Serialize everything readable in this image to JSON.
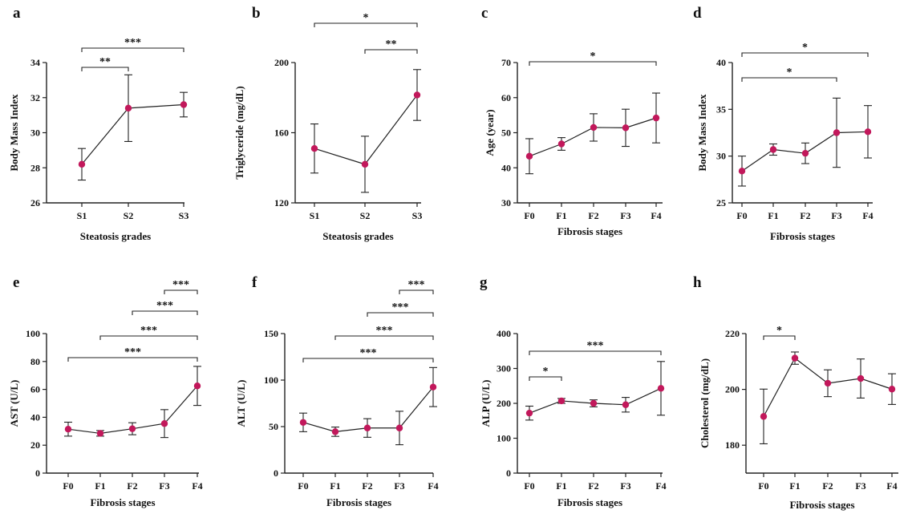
{
  "style": {
    "point_color": "#c2185b",
    "line_color": "#222222"
  },
  "chart_data": [
    {
      "panel": "a",
      "type": "line",
      "categories": [
        "S1",
        "S2",
        "S3"
      ],
      "values": [
        28.2,
        31.4,
        31.6
      ],
      "err_low": [
        27.3,
        29.5,
        30.9
      ],
      "err_high": [
        29.1,
        33.3,
        32.3
      ],
      "ylim": [
        26,
        34
      ],
      "yticks": [
        26,
        28,
        30,
        32,
        34
      ],
      "xlabel": "Steatosis grades",
      "ylabel": "Body Mass Index",
      "significance": [
        {
          "from": "S1",
          "to": "S3",
          "label": "***"
        },
        {
          "from": "S1",
          "to": "S2",
          "label": "**"
        }
      ]
    },
    {
      "panel": "b",
      "type": "line",
      "categories": [
        "S1",
        "S2",
        "S3"
      ],
      "values": [
        151,
        142,
        181.5
      ],
      "err_low": [
        137,
        126,
        167
      ],
      "err_high": [
        165,
        158,
        196
      ],
      "ylim": [
        120,
        200
      ],
      "yticks": [
        120,
        160,
        200
      ],
      "xlabel": "Steatosis grades",
      "ylabel": "Triglyceride (mg/dL)",
      "significance": [
        {
          "from": "S1",
          "to": "S3",
          "label": "*"
        },
        {
          "from": "S2",
          "to": "S3",
          "label": "**"
        }
      ]
    },
    {
      "panel": "c",
      "type": "line",
      "categories": [
        "F0",
        "F1",
        "F2",
        "F3",
        "F4"
      ],
      "values": [
        43.3,
        46.8,
        51.5,
        51.4,
        54.2
      ],
      "err_low": [
        38.3,
        45,
        47.6,
        46.1,
        47.1
      ],
      "err_high": [
        48.3,
        48.6,
        55.4,
        56.7,
        61.3
      ],
      "ylim": [
        30,
        70
      ],
      "yticks": [
        30,
        40,
        50,
        60,
        70
      ],
      "xlabel": "Fibrosis stages",
      "ylabel": "Age (year)",
      "significance": [
        {
          "from": "F0",
          "to": "F4",
          "label": "*"
        }
      ]
    },
    {
      "panel": "d",
      "type": "line",
      "categories": [
        "F0",
        "F1",
        "F2",
        "F3",
        "F4"
      ],
      "values": [
        28.4,
        30.7,
        30.3,
        32.5,
        32.6
      ],
      "err_low": [
        26.8,
        30.1,
        29.2,
        28.8,
        29.8
      ],
      "err_high": [
        30,
        31.3,
        31.4,
        36.2,
        35.4
      ],
      "ylim": [
        25,
        40
      ],
      "yticks": [
        25,
        30,
        35,
        40
      ],
      "xlabel": "Fibrosis stages",
      "ylabel": "Body Mass Index",
      "significance": [
        {
          "from": "F0",
          "to": "F4",
          "label": "*"
        },
        {
          "from": "F0",
          "to": "F3",
          "label": "*"
        }
      ]
    },
    {
      "panel": "e",
      "type": "line",
      "categories": [
        "F0",
        "F1",
        "F2",
        "F3",
        "F4"
      ],
      "values": [
        31.5,
        28.5,
        31.8,
        35.5,
        62.5
      ],
      "err_low": [
        26.5,
        26.5,
        27.5,
        25.5,
        48.5
      ],
      "err_high": [
        36.5,
        30.5,
        36.1,
        45.5,
        76.5
      ],
      "ylim": [
        0,
        100
      ],
      "yticks": [
        0,
        20,
        40,
        60,
        80,
        100
      ],
      "xlabel": "Fibrosis stages",
      "ylabel": "AST (U/L)",
      "significance": [
        {
          "from": "F3",
          "to": "F4",
          "label": "***"
        },
        {
          "from": "F2",
          "to": "F4",
          "label": "***"
        },
        {
          "from": "F1",
          "to": "F4",
          "label": "***"
        },
        {
          "from": "F0",
          "to": "F4",
          "label": "***"
        }
      ]
    },
    {
      "panel": "f",
      "type": "line",
      "categories": [
        "F0",
        "F1",
        "F2",
        "F3",
        "F4"
      ],
      "values": [
        54.5,
        44.5,
        48.5,
        48.5,
        92.5
      ],
      "err_low": [
        44.5,
        39.5,
        38.5,
        30.5,
        71.5
      ],
      "err_high": [
        64.5,
        49.5,
        58.5,
        66.5,
        113.5
      ],
      "ylim": [
        0,
        150
      ],
      "yticks": [
        0,
        50,
        100,
        150
      ],
      "xlabel": "Fibrosis stages",
      "ylabel": "ALT (U/L)",
      "significance": [
        {
          "from": "F3",
          "to": "F4",
          "label": "***"
        },
        {
          "from": "F2",
          "to": "F4",
          "label": "***"
        },
        {
          "from": "F1",
          "to": "F4",
          "label": "***"
        },
        {
          "from": "F0",
          "to": "F4",
          "label": "***"
        }
      ]
    },
    {
      "panel": "g",
      "type": "line",
      "categories": [
        "F0",
        "F1",
        "F2",
        "F3",
        "F4"
      ],
      "values": [
        172,
        207,
        200,
        196,
        243
      ],
      "err_low": [
        152,
        200,
        190,
        175,
        166
      ],
      "err_high": [
        192,
        214,
        210,
        217,
        320
      ],
      "ylim": [
        0,
        400
      ],
      "yticks": [
        0,
        100,
        200,
        300,
        400
      ],
      "xlabel": "Fibrosis stages",
      "ylabel": "ALP (U/L)",
      "significance": [
        {
          "from": "F0",
          "to": "F4",
          "label": "***"
        },
        {
          "from": "F0",
          "to": "F1",
          "label": "*"
        }
      ]
    },
    {
      "panel": "h",
      "type": "line",
      "categories": [
        "F0",
        "F1",
        "F2",
        "F3",
        "F4"
      ],
      "values": [
        190.3,
        211.2,
        202.2,
        203.9,
        200.1
      ],
      "err_low": [
        180.5,
        209,
        197.4,
        196.9,
        194.6
      ],
      "err_high": [
        200.1,
        213.4,
        207,
        210.9,
        205.6
      ],
      "ylim": [
        170,
        220
      ],
      "yticks": [
        180,
        200,
        220
      ],
      "xlabel": "Fibrosis stages",
      "ylabel": "Cholesterol (mg/dL)",
      "significance": [
        {
          "from": "F0",
          "to": "F1",
          "label": "*"
        }
      ]
    }
  ]
}
